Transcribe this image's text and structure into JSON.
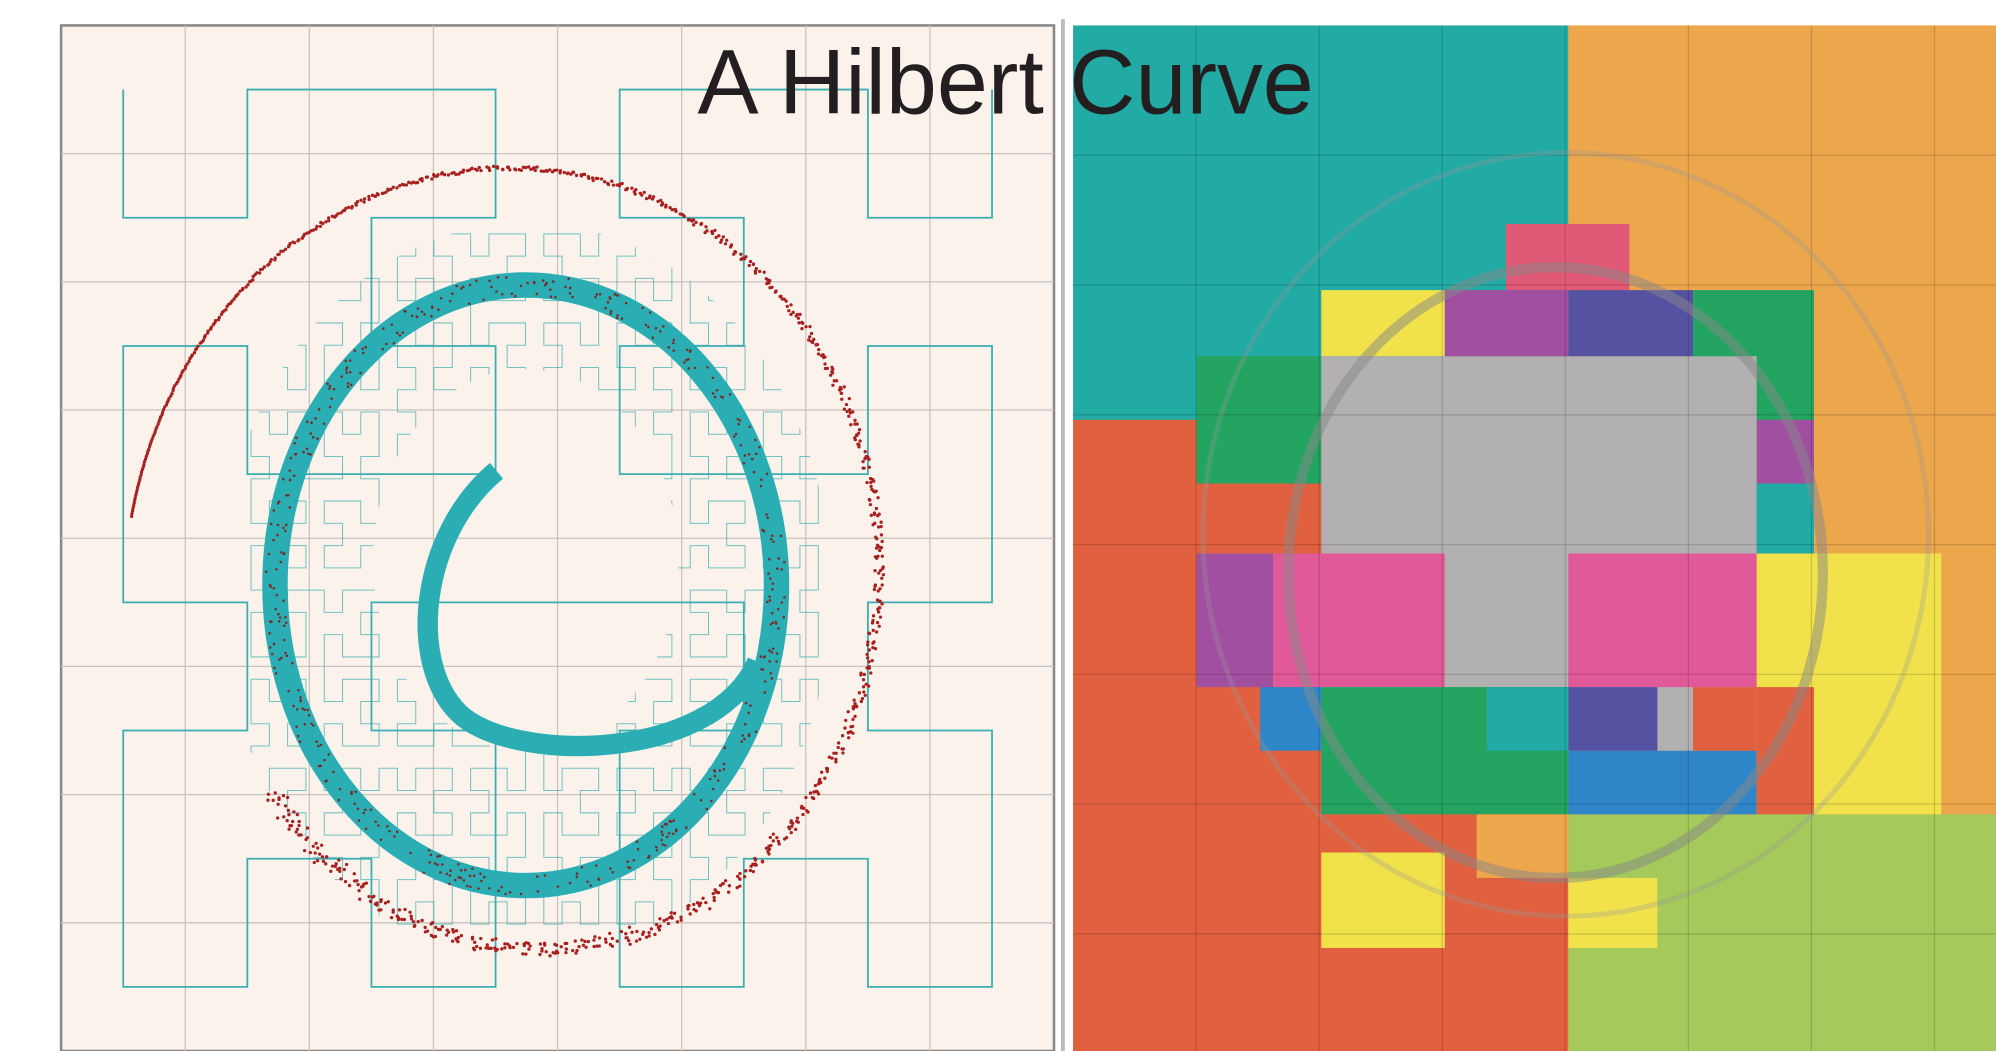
{
  "title": "A Hilbert Curve"
}
